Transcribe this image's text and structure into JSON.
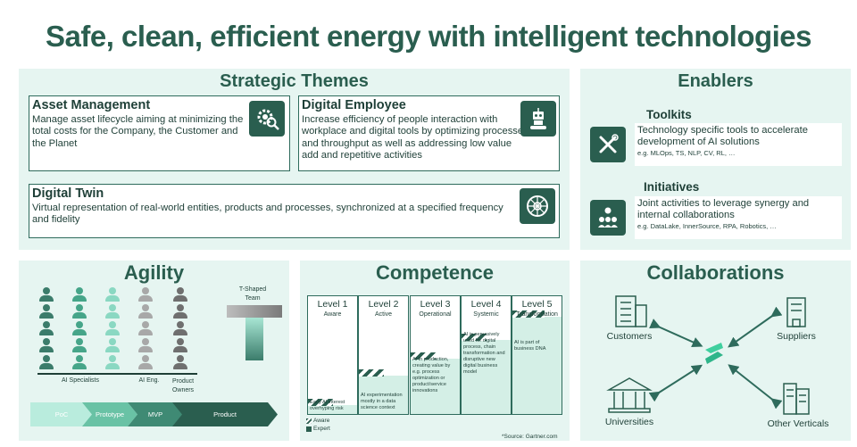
{
  "headline": "Safe, clean, efficient energy with intelligent technologies",
  "strategic_themes": {
    "title": "Strategic Themes",
    "items": [
      {
        "title": "Asset Management",
        "text": "Manage asset lifecycle aiming at minimizing the total costs for the Company, the Customer and the Planet",
        "icon": "gear-magnifier-icon"
      },
      {
        "title": "Digital Employee",
        "text": "Increase efficiency of people interaction with workplace and digital tools by optimizing processes and throughput as well as addressing low value add and repetitive activities",
        "icon": "robot-icon"
      },
      {
        "title": "Digital Twin",
        "text": "Virtual representation of real-world entities, products and processes, synchronized at a specified frequency and fidelity",
        "icon": "wheel-icon"
      }
    ]
  },
  "enablers": {
    "title": "Enablers",
    "toolkits": {
      "title": "Toolkits",
      "text": "Technology specific tools to accelerate development of AI solutions",
      "eg": "e.g. MLOps, TS, NLP, CV, RL, …",
      "icon": "tools-icon"
    },
    "initiatives": {
      "title": "Initiatives",
      "text": "Joint activities to leverage synergy and internal collaborations",
      "eg": "e.g. DataLake, InnerSource, RPA, Robotics, …",
      "icon": "people-network-icon"
    }
  },
  "agility": {
    "title": "Agility",
    "t_shaped": "T-Shaped\nTeam",
    "columns": [
      {
        "label": "AI Specialists",
        "color": "#3b7c6b"
      },
      {
        "label": "",
        "color": "#46a589"
      },
      {
        "label": "",
        "color": "#8ad8c2"
      },
      {
        "label": "AI Eng.",
        "color": "#a8a8a8"
      },
      {
        "label": "Product\nOwners",
        "color": "#6f6f6f"
      }
    ],
    "phases": [
      "PoC",
      "Prototype",
      "MVP",
      "Product"
    ]
  },
  "competence": {
    "title": "Competence",
    "source": "*Source: Gartner.com",
    "legend": [
      "Aware",
      "Expert"
    ],
    "levels": [
      {
        "name": "Level 1",
        "sub": "Aware",
        "desc": "Early AI interest overhyping risk",
        "fill": 0.08
      },
      {
        "name": "Level 2",
        "sub": "Active",
        "desc": "AI experimentation mostly in a data science context",
        "fill": 0.33
      },
      {
        "name": "Level 3",
        "sub": "Operational",
        "desc": "AI in production, creating value by e.g. process optimization or product/service innovations",
        "fill": 0.47
      },
      {
        "name": "Level 4",
        "sub": "Systemic",
        "desc": "AI is pervasively used for digital process, chain transformation and disruptive new digital business model",
        "fill": 0.63
      },
      {
        "name": "Level 5",
        "sub": "Transformation",
        "desc": "AI is part of business DNA",
        "fill": 0.83
      }
    ]
  },
  "collaborations": {
    "title": "Collaborations",
    "nodes": [
      "Customers",
      "Suppliers",
      "Universities",
      "Other Verticals"
    ]
  },
  "colors": {
    "primary": "#2a5e4f",
    "panel": "#e6f5f1",
    "light": "#d4efe6"
  }
}
